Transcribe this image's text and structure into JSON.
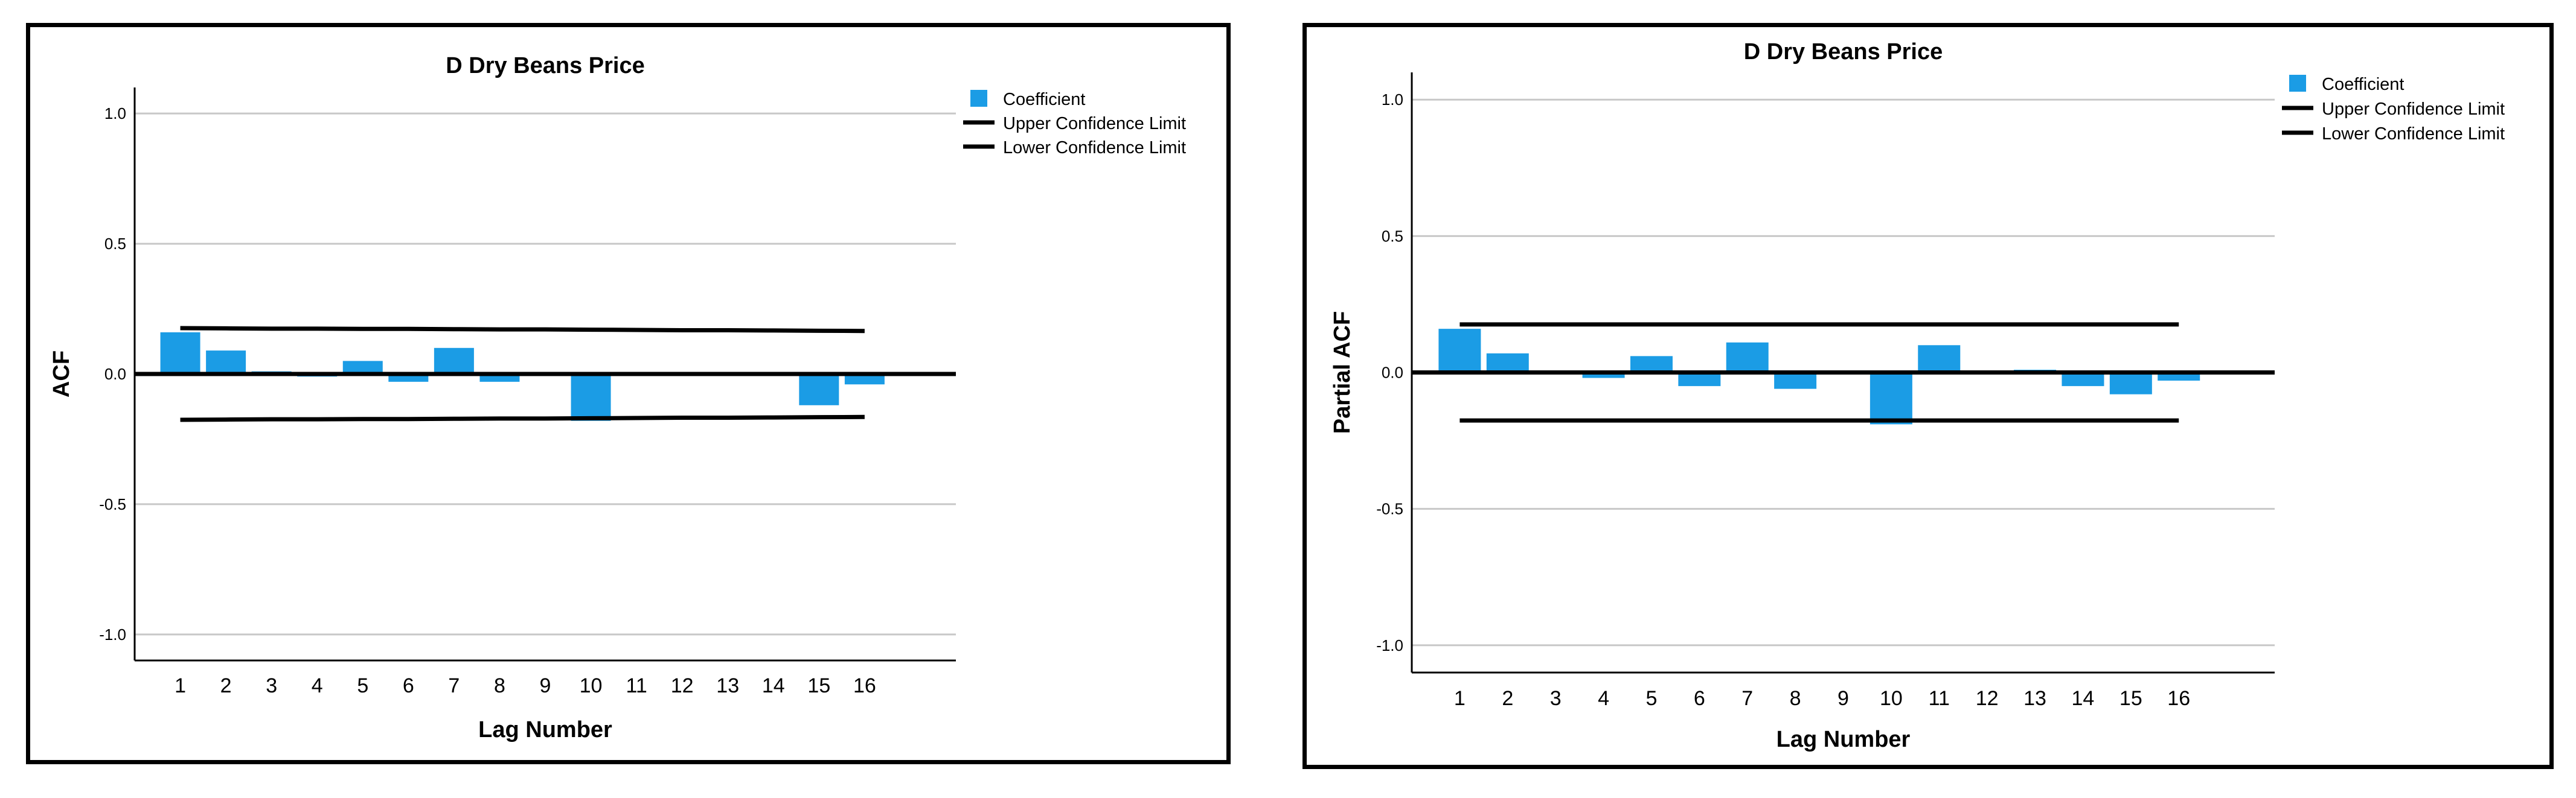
{
  "chart_data": [
    {
      "type": "bar",
      "title": "D Dry Beans Price",
      "xlabel": "Lag Number",
      "ylabel": "ACF",
      "ylim": [
        -1.1,
        1.1
      ],
      "yticks": [
        "1.0",
        "0.5",
        "0.0",
        "-0.5",
        "-1.0"
      ],
      "ytick_values": [
        1.0,
        0.5,
        0.0,
        -0.5,
        -1.0
      ],
      "categories": [
        "1",
        "2",
        "3",
        "4",
        "5",
        "6",
        "7",
        "8",
        "9",
        "10",
        "11",
        "12",
        "13",
        "14",
        "15",
        "16"
      ],
      "series": [
        {
          "name": "Coefficient",
          "values": [
            0.16,
            0.09,
            0.01,
            -0.01,
            0.05,
            -0.03,
            0.1,
            -0.03,
            0.0,
            -0.18,
            0.005,
            0.003,
            0.0,
            0.0,
            -0.12,
            -0.04
          ],
          "color": "#1b9ce5"
        },
        {
          "name": "Upper Confidence Limit",
          "values": [
            0.176,
            0.175,
            0.174,
            0.174,
            0.173,
            0.173,
            0.172,
            0.171,
            0.171,
            0.17,
            0.169,
            0.168,
            0.168,
            0.167,
            0.166,
            0.165
          ],
          "color": "#000000"
        },
        {
          "name": "Lower Confidence Limit",
          "values": [
            -0.176,
            -0.175,
            -0.174,
            -0.174,
            -0.173,
            -0.173,
            -0.172,
            -0.171,
            -0.171,
            -0.17,
            -0.169,
            -0.168,
            -0.168,
            -0.167,
            -0.166,
            -0.165
          ],
          "color": "#000000"
        }
      ],
      "legend": [
        "Coefficient",
        "Upper Confidence Limit",
        "Lower Confidence Limit"
      ],
      "legend_position": "top-right",
      "grid": true
    },
    {
      "type": "bar",
      "title": "D Dry Beans Price",
      "xlabel": "Lag Number",
      "ylabel": "Partial ACF",
      "ylim": [
        -1.1,
        1.1
      ],
      "yticks": [
        "1.0",
        "0.5",
        "0.0",
        "-0.5",
        "-1.0"
      ],
      "ytick_values": [
        1.0,
        0.5,
        0.0,
        -0.5,
        -1.0
      ],
      "categories": [
        "1",
        "2",
        "3",
        "4",
        "5",
        "6",
        "7",
        "8",
        "9",
        "10",
        "11",
        "12",
        "13",
        "14",
        "15",
        "16"
      ],
      "series": [
        {
          "name": "Coefficient",
          "values": [
            0.16,
            0.07,
            0.0,
            -0.02,
            0.06,
            -0.05,
            0.11,
            -0.06,
            0.0,
            -0.19,
            0.1,
            0.0,
            0.01,
            -0.05,
            -0.08,
            -0.03
          ],
          "color": "#1b9ce5"
        },
        {
          "name": "Upper Confidence Limit",
          "values": [
            0.176,
            0.176,
            0.176,
            0.176,
            0.176,
            0.176,
            0.176,
            0.176,
            0.176,
            0.176,
            0.176,
            0.176,
            0.176,
            0.176,
            0.176,
            0.176
          ],
          "color": "#000000"
        },
        {
          "name": "Lower Confidence Limit",
          "values": [
            -0.176,
            -0.176,
            -0.176,
            -0.176,
            -0.176,
            -0.176,
            -0.176,
            -0.176,
            -0.176,
            -0.176,
            -0.176,
            -0.176,
            -0.176,
            -0.176,
            -0.176,
            -0.176
          ],
          "color": "#000000"
        }
      ],
      "legend": [
        "Coefficient",
        "Upper Confidence Limit",
        "Lower Confidence Limit"
      ],
      "legend_position": "top-right",
      "grid": true
    }
  ]
}
